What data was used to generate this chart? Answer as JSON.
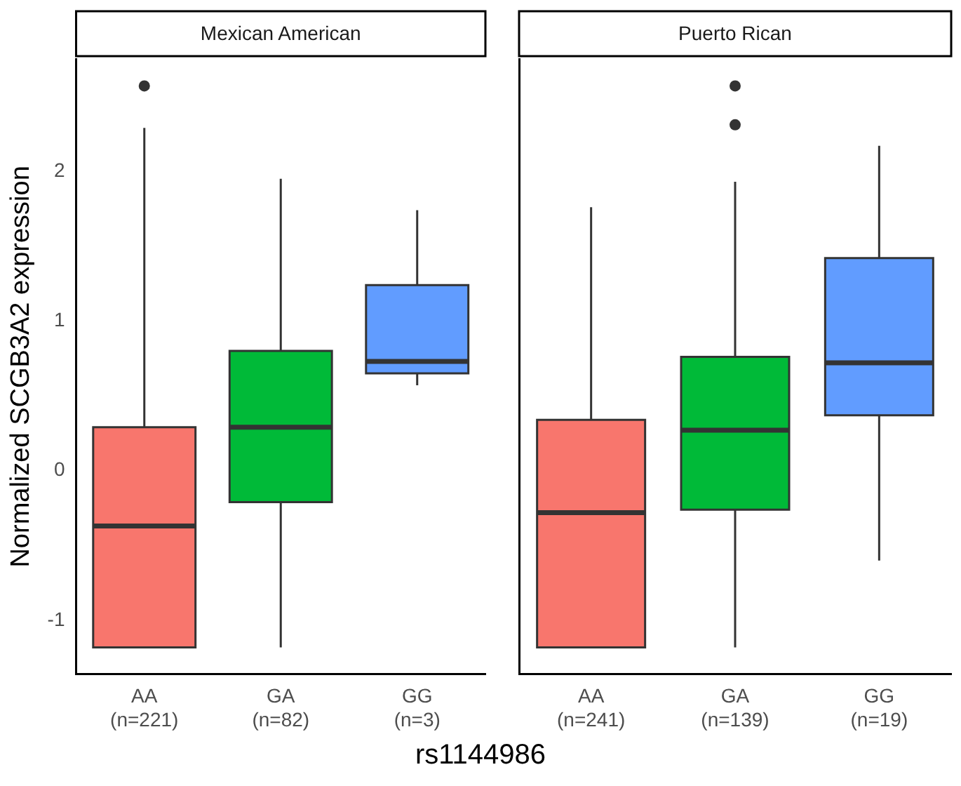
{
  "chart_data": [
    {
      "type": "box",
      "title": "Mexican American",
      "ylabel": "Normalized SCGB3A2 expression",
      "xlabel": "rs1144986",
      "categories": [
        "AA\n(n=221)",
        "GA\n(n=82)",
        "GG\n(n=3)"
      ],
      "colors": [
        "#f8766d",
        "#00ba38",
        "#619cff"
      ],
      "ylim": [
        -1.36,
        2.75
      ],
      "yticks": [
        -1,
        0,
        1,
        2
      ],
      "grid": false,
      "legend": false,
      "boxes": [
        {
          "low": -1.18,
          "q1": -1.18,
          "median": -0.37,
          "q3": 0.29,
          "high": 2.29,
          "outliers": [
            2.57
          ]
        },
        {
          "low": -1.18,
          "q1": -0.21,
          "median": 0.29,
          "q3": 0.8,
          "high": 1.95
        },
        {
          "low": 0.57,
          "q1": 0.65,
          "median": 0.73,
          "q3": 1.24,
          "high": 1.74
        }
      ]
    },
    {
      "type": "box",
      "title": "Puerto Rican",
      "categories": [
        "AA\n(n=241)",
        "GA\n(n=139)",
        "GG\n(n=19)"
      ],
      "colors": [
        "#f8766d",
        "#00ba38",
        "#619cff"
      ],
      "ylim": [
        -1.36,
        2.75
      ],
      "yticks": [
        -1,
        0,
        1,
        2
      ],
      "grid": false,
      "legend": false,
      "tick_labels": "x",
      "boxes": [
        {
          "low": -1.18,
          "q1": -1.18,
          "median": -0.28,
          "q3": 0.34,
          "high": 1.76
        },
        {
          "low": -1.18,
          "q1": -0.26,
          "median": 0.27,
          "q3": 0.76,
          "high": 1.93,
          "outliers": [
            2.57,
            2.31
          ]
        },
        {
          "low": -0.6,
          "q1": 0.37,
          "median": 0.72,
          "q3": 1.42,
          "high": 2.17
        }
      ]
    }
  ]
}
